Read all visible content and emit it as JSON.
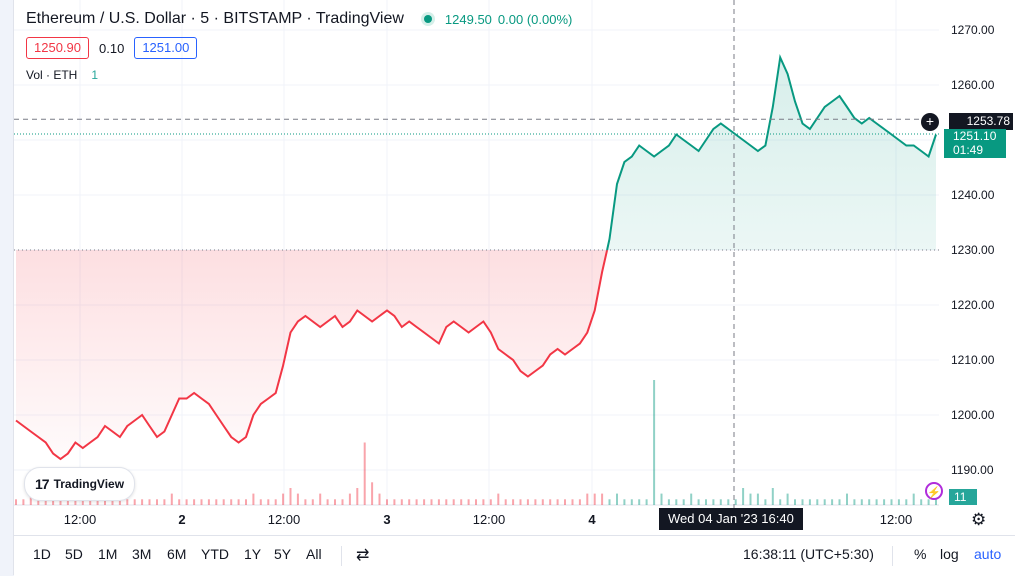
{
  "header": {
    "symbol_title": "Ethereum / U.S. Dollar · 5 · BITSTAMP · TradingView",
    "last_price": "1249.50",
    "change": "0.00 (0.00%)",
    "bid": "1250.90",
    "spread": "0.10",
    "ask": "1251.00",
    "volume_label": "Vol · ETH",
    "volume_value": "1"
  },
  "badge": {
    "logo": "17",
    "name": "TradingView"
  },
  "price_axis": {
    "ticks": [
      "1270.00",
      "1260.00",
      "1250.00",
      "1240.00",
      "1230.00",
      "1220.00",
      "1210.00",
      "1200.00",
      "1190.00"
    ],
    "crosshair_price": "1253.78",
    "last_price_tag": "1251.10",
    "countdown": "01:49",
    "volume_tag": "11"
  },
  "time_axis": {
    "labels": [
      {
        "text": "12:00",
        "bold": false
      },
      {
        "text": "2",
        "bold": true
      },
      {
        "text": "12:00",
        "bold": false
      },
      {
        "text": "3",
        "bold": true
      },
      {
        "text": "12:00",
        "bold": false
      },
      {
        "text": "4",
        "bold": true
      },
      {
        "text": "12:00",
        "bold": false
      }
    ],
    "crosshair_time": "Wed 04 Jan '23   16:40"
  },
  "bottom_bar": {
    "ranges": [
      "1D",
      "5D",
      "1M",
      "3M",
      "6M",
      "YTD",
      "1Y",
      "5Y",
      "All"
    ],
    "clock": "16:38:11 (UTC+5:30)",
    "percent": "%",
    "log": "log",
    "auto": "auto"
  },
  "colors": {
    "up": "#089981",
    "down": "#f23645",
    "accent": "#2962ff",
    "dark": "#131722"
  },
  "chart_data": {
    "type": "area",
    "title": "Ethereum / U.S. Dollar · 5 · BITSTAMP · TradingView",
    "baseline": 1230,
    "ylim": [
      1185,
      1272
    ],
    "x_labels": [
      "12:00",
      "2",
      "12:00",
      "3",
      "12:00",
      "4",
      "12:00"
    ],
    "series": [
      {
        "values": [
          1199,
          1198,
          1197,
          1196,
          1195,
          1193,
          1192,
          1193,
          1195,
          1194,
          1195,
          1196,
          1198,
          1197,
          1196,
          1198,
          1199,
          1200,
          1198,
          1196,
          1197,
          1200,
          1203,
          1203,
          1204,
          1203,
          1202,
          1200,
          1198,
          1196,
          1195,
          1196,
          1200,
          1202,
          1203,
          1204,
          1209,
          1215,
          1217,
          1218,
          1217,
          1216,
          1217,
          1218,
          1216,
          1217,
          1219,
          1218,
          1217,
          1218,
          1219,
          1218,
          1216,
          1217,
          1216,
          1215,
          1214,
          1213,
          1216,
          1217,
          1216,
          1215,
          1216,
          1217,
          1215,
          1212,
          1211,
          1210,
          1208,
          1207,
          1208,
          1209,
          1211,
          1212,
          1211,
          1212,
          1213,
          1215,
          1219,
          1226,
          1232,
          1242,
          1246,
          1247,
          1249,
          1248,
          1247,
          1248,
          1249,
          1251,
          1250,
          1249,
          1248,
          1250,
          1252,
          1253,
          1252,
          1251,
          1250,
          1249,
          1248,
          1249,
          1256,
          1265,
          1262,
          1257,
          1253,
          1252,
          1254,
          1256,
          1257,
          1258,
          1256,
          1254,
          1253,
          1254,
          1253,
          1252,
          1251,
          1250,
          1249,
          1249,
          1248,
          1247,
          1251
        ]
      },
      {
        "name": "Volume",
        "values": [
          1,
          1,
          2,
          1,
          1,
          1,
          1,
          2,
          1,
          1,
          1,
          1,
          1,
          2,
          1,
          1,
          1,
          1,
          1,
          1,
          1,
          2,
          1,
          1,
          1,
          1,
          1,
          1,
          1,
          1,
          1,
          1,
          2,
          1,
          1,
          1,
          2,
          3,
          2,
          1,
          1,
          2,
          1,
          1,
          1,
          2,
          3,
          11,
          4,
          2,
          1,
          1,
          1,
          1,
          1,
          1,
          1,
          1,
          1,
          1,
          1,
          1,
          1,
          1,
          1,
          2,
          1,
          1,
          1,
          1,
          1,
          1,
          1,
          1,
          1,
          1,
          1,
          2,
          2,
          2,
          1,
          2,
          1,
          1,
          1,
          1,
          22,
          2,
          1,
          1,
          1,
          2,
          1,
          1,
          1,
          1,
          1,
          1,
          3,
          2,
          2,
          1,
          3,
          1,
          2,
          1,
          1,
          1,
          1,
          1,
          1,
          1,
          2,
          1,
          1,
          1,
          1,
          1,
          1,
          1,
          1,
          2,
          1,
          1,
          1
        ]
      }
    ]
  }
}
